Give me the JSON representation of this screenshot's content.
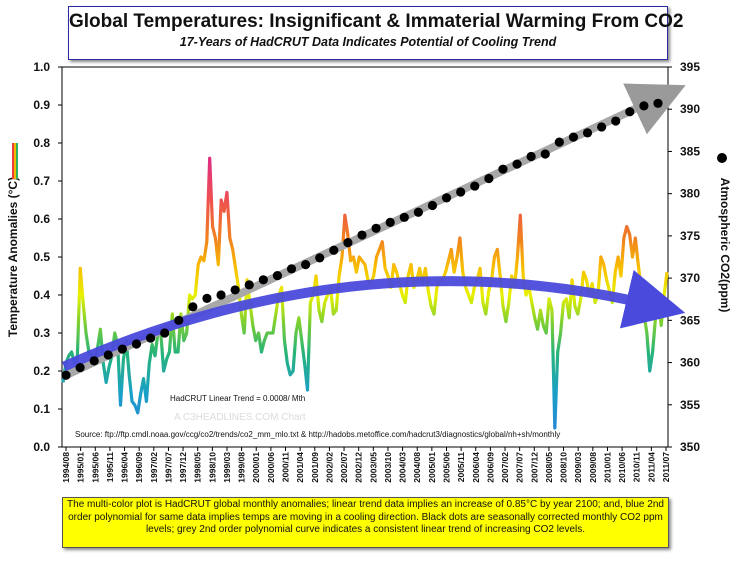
{
  "chart_data": {
    "type": "line",
    "title": "Global Temperatures: Insignificant & Immaterial Warming From CO2",
    "subtitle": "17-Years of HadCRUT Data Indicates Potential of Cooling Trend",
    "ylabel_left": "Temperature Anomalies (°C)",
    "ylabel_right": "Atmospheric CO2(ppm)",
    "ylim_left": [
      0.0,
      1.0
    ],
    "ylim_right": [
      350,
      395
    ],
    "left_ticks": [
      "0.0",
      "0.1",
      "0.2",
      "0.3",
      "0.4",
      "0.5",
      "0.6",
      "0.7",
      "0.8",
      "0.9",
      "1.0"
    ],
    "right_ticks": [
      "350",
      "355",
      "360",
      "365",
      "370",
      "375",
      "380",
      "385",
      "390",
      "395"
    ],
    "x_tick_labels": [
      "1994/08",
      "1995/01",
      "1995/06",
      "1995/11",
      "1996/04",
      "1996/09",
      "1997/02",
      "1997/07",
      "1997/12",
      "1998/05",
      "1998/10",
      "1999/03",
      "1999/08",
      "2000/01",
      "2000/06",
      "2000/11",
      "2001/04",
      "2001/09",
      "2002/02",
      "2002/07",
      "2002/12",
      "2003/05",
      "2003/10",
      "2004/03",
      "2004/08",
      "2005/01",
      "2005/06",
      "2005/11",
      "2006/04",
      "2006/09",
      "2007/02",
      "2007/07",
      "2007/12",
      "2008/05",
      "2008/10",
      "2009/03",
      "2009/08",
      "2010/01",
      "2010/06",
      "2010/11",
      "2011/04",
      "2011/07"
    ],
    "series": [
      {
        "name": "HadCRUT global monthly anomalies",
        "style": "multi-color",
        "values": [
          0.17,
          0.22,
          0.24,
          0.25,
          0.22,
          0.24,
          0.47,
          0.38,
          0.3,
          0.25,
          0.24,
          0.22,
          0.26,
          0.31,
          0.22,
          0.17,
          0.21,
          0.24,
          0.3,
          0.27,
          0.11,
          0.23,
          0.28,
          0.19,
          0.12,
          0.11,
          0.09,
          0.14,
          0.18,
          0.12,
          0.22,
          0.27,
          0.24,
          0.3,
          0.3,
          0.2,
          0.23,
          0.25,
          0.35,
          0.25,
          0.25,
          0.35,
          0.28,
          0.3,
          0.4,
          0.39,
          0.4,
          0.48,
          0.5,
          0.49,
          0.54,
          0.76,
          0.58,
          0.55,
          0.48,
          0.65,
          0.62,
          0.67,
          0.55,
          0.52,
          0.47,
          0.42,
          0.35,
          0.3,
          0.44,
          0.38,
          0.32,
          0.28,
          0.3,
          0.25,
          0.28,
          0.3,
          0.3,
          0.3,
          0.35,
          0.4,
          0.42,
          0.28,
          0.22,
          0.19,
          0.2,
          0.3,
          0.34,
          0.28,
          0.22,
          0.15,
          0.38,
          0.4,
          0.45,
          0.36,
          0.33,
          0.38,
          0.4,
          0.42,
          0.35,
          0.36,
          0.45,
          0.5,
          0.61,
          0.56,
          0.49,
          0.5,
          0.46,
          0.5,
          0.49,
          0.48,
          0.44,
          0.43,
          0.45,
          0.5,
          0.52,
          0.54,
          0.47,
          0.45,
          0.42,
          0.48,
          0.46,
          0.43,
          0.4,
          0.38,
          0.45,
          0.48,
          0.42,
          0.44,
          0.47,
          0.43,
          0.47,
          0.41,
          0.37,
          0.35,
          0.42,
          0.44,
          0.44,
          0.46,
          0.49,
          0.52,
          0.46,
          0.5,
          0.55,
          0.46,
          0.42,
          0.4,
          0.38,
          0.42,
          0.44,
          0.47,
          0.38,
          0.35,
          0.41,
          0.44,
          0.5,
          0.52,
          0.45,
          0.37,
          0.33,
          0.38,
          0.45,
          0.42,
          0.5,
          0.61,
          0.45,
          0.4,
          0.42,
          0.38,
          0.34,
          0.31,
          0.36,
          0.32,
          0.3,
          0.39,
          0.36,
          0.05,
          0.25,
          0.3,
          0.38,
          0.39,
          0.34,
          0.44,
          0.37,
          0.35,
          0.39,
          0.46,
          0.44,
          0.4,
          0.43,
          0.38,
          0.4,
          0.5,
          0.48,
          0.44,
          0.41,
          0.38,
          0.46,
          0.5,
          0.45,
          0.55,
          0.58,
          0.56,
          0.5,
          0.55,
          0.48,
          0.42,
          0.35,
          0.3,
          0.2,
          0.25,
          0.34,
          0.38,
          0.32,
          0.4,
          0.46
        ]
      },
      {
        "name": "Seasonally corrected monthly CO2 ppm",
        "axis": "right",
        "marker": "black-dot",
        "values": [
          358.5,
          359.4,
          360.2,
          360.9,
          361.6,
          362.2,
          362.9,
          363.5,
          365.0,
          366.6,
          367.6,
          368.0,
          368.6,
          369.2,
          369.8,
          370.3,
          371.1,
          371.6,
          372.4,
          373.3,
          374.2,
          375.1,
          375.9,
          376.6,
          377.2,
          377.8,
          378.6,
          379.5,
          380.2,
          380.9,
          381.8,
          382.9,
          383.5,
          384.4,
          384.7,
          386.1,
          386.7,
          387.2,
          387.9,
          388.6,
          389.7,
          390.4,
          390.7
        ]
      }
    ],
    "annotations": {
      "trend_text": "HadCRUT Linear Trend = 0.0008/ Mth",
      "watermark": "A C3HEADLINES.COM Chart",
      "source": "Source: ftp://ftp.cmdl.noaa.gov/ccg/co2/trends/co2_mm_mlo.txt  &  http://hadobs.metoffice.com/hadcrut3/diagnostics/global/nh+sh/monthly"
    },
    "footnote": "The multi-color plot is HadCRUT global monthly anomalies; linear trend data implies an increase of 0.85°C by year 2100; and, blue 2nd order polynomial for same data implies temps are moving in a cooling direction. Black dots are seasonally corrected monthly CO2 ppm levels; grey 2nd order polynomial curve indicates a consistent linear trend of increasing CO2 levels.",
    "colors": {
      "blue_curve": "#4a4adc",
      "grey_curve": "#a8a8a8",
      "co2_dots": "#000000",
      "title_border": "#2a2aa0",
      "note_bg": "#ffff00"
    }
  }
}
